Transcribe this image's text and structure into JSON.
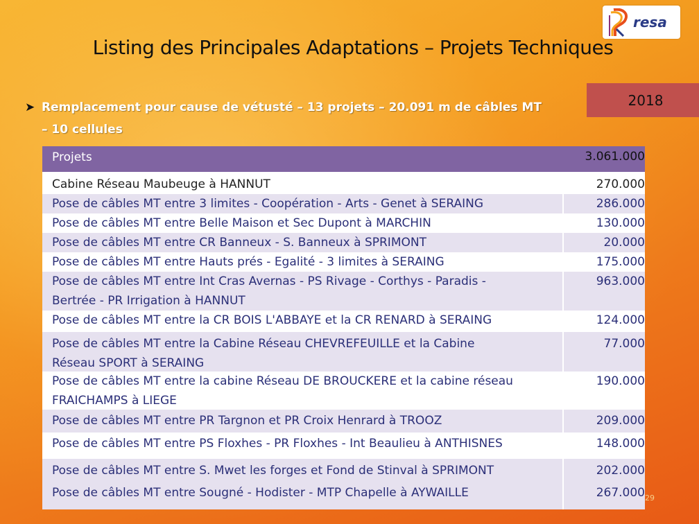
{
  "logo": {
    "brand": "resa"
  },
  "title": "Listing des Principales Adaptations – Projets Techniques",
  "bullet": {
    "marker": "Ø",
    "line1": "Remplacement pour cause de vétusté – 13 projets – 20.091 m de câbles MT",
    "line2": "– 10 cellules"
  },
  "year": "2018",
  "table": {
    "header": {
      "label": "Projets",
      "amount": "3.061.000"
    },
    "rows": [
      {
        "label": "Cabine Réseau Maubeuge à HANNUT",
        "amount": "270.000"
      },
      {
        "label": "Pose de câbles MT entre 3 limites - Coopération - Arts  - Genet à SERAING",
        "amount": "286.000"
      },
      {
        "label": "Pose de câbles MT entre Belle Maison et Sec Dupont à MARCHIN",
        "amount": "130.000"
      },
      {
        "label": "Pose de câbles MT entre CR Banneux - S. Banneux à SPRIMONT",
        "amount": "20.000"
      },
      {
        "label": "Pose de câbles MT entre Hauts prés - Egalité - 3 limites à SERAING",
        "amount": "175.000"
      },
      {
        "label": "Pose de câbles MT entre Int Cras Avernas - PS Rivage - Corthys - Paradis -",
        "label2": "Bertrée - PR Irrigation à HANNUT",
        "amount": "963.000"
      },
      {
        "label": "Pose de câbles MT entre la CR BOIS L'ABBAYE et la CR RENARD à SERAING",
        "amount": "124.000"
      },
      {
        "label": "Pose de câbles MT entre la Cabine Réseau CHEVREFEUILLE et la Cabine",
        "label2": "Réseau SPORT à SERAING",
        "amount": "77.000"
      },
      {
        "label": "Pose de câbles MT entre la cabine Réseau DE BROUCKERE et la cabine réseau",
        "label2": "FRAICHAMPS à LIEGE",
        "amount": "190.000"
      },
      {
        "label": "Pose de câbles MT entre PR Targnon et PR Croix Henrard à TROOZ",
        "amount": "209.000"
      },
      {
        "label": "Pose de câbles MT entre PS Floxhes - PR Floxhes - Int Beaulieu à ANTHISNES",
        "amount": "148.000"
      },
      {
        "label": "Pose de câbles MT entre S. Mwet les forges et Fond de Stinval à SPRIMONT",
        "amount": "202.000"
      },
      {
        "label": "Pose de câbles MT entre Sougné - Hodister - MTP Chapelle à AYWAILLE",
        "amount": "267.000"
      }
    ]
  },
  "page_number": "29"
}
